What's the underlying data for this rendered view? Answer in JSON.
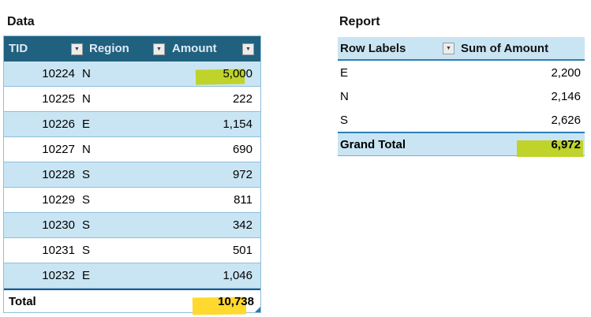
{
  "left_panel": {
    "title": "Data",
    "table": {
      "columns": [
        {
          "label": "TID"
        },
        {
          "label": "Region"
        },
        {
          "label": "Amount"
        }
      ],
      "filter_icon": "▼",
      "rows": [
        {
          "tid": "10224",
          "region": "N",
          "amount": "5,000",
          "highlight": "green"
        },
        {
          "tid": "10225",
          "region": "N",
          "amount": "222"
        },
        {
          "tid": "10226",
          "region": "E",
          "amount": "1,154"
        },
        {
          "tid": "10227",
          "region": "N",
          "amount": "690"
        },
        {
          "tid": "10228",
          "region": "S",
          "amount": "972"
        },
        {
          "tid": "10229",
          "region": "S",
          "amount": "811"
        },
        {
          "tid": "10230",
          "region": "S",
          "amount": "342"
        },
        {
          "tid": "10231",
          "region": "S",
          "amount": "501"
        },
        {
          "tid": "10232",
          "region": "E",
          "amount": "1,046"
        }
      ],
      "total": {
        "label": "Total",
        "amount": "10,738",
        "highlight": "yellow"
      }
    }
  },
  "right_panel": {
    "title": "Report",
    "pivot": {
      "columns": [
        {
          "label": "Row Labels"
        },
        {
          "label": "Sum of Amount"
        }
      ],
      "filter_icon": "▼",
      "rows": [
        {
          "label": "E",
          "value": "2,200"
        },
        {
          "label": "N",
          "value": "2,146"
        },
        {
          "label": "S",
          "value": "2,626"
        }
      ],
      "grand_total": {
        "label": "Grand Total",
        "value": "6,972",
        "highlight": "green"
      }
    }
  },
  "colors": {
    "header_bg": "#20617F",
    "header_text": "#DEEBF5",
    "banded_row": "#C9E5F3",
    "pivot_band": "#C9E5F3",
    "grid_line": "#8FBEDD",
    "accent_line": "#2C7FB5",
    "highlight_green": "#BFD32B",
    "highlight_yellow": "#FFD92E",
    "resize_handle": "#2E75B6"
  }
}
